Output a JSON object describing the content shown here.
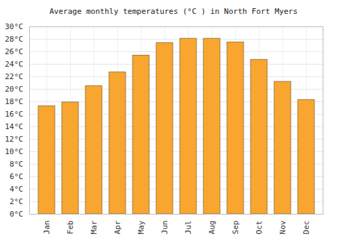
{
  "chart_data": {
    "type": "bar",
    "title": "Average monthly temperatures (°C ) in North Fort Myers",
    "categories": [
      "Jan",
      "Feb",
      "Mar",
      "Apr",
      "May",
      "Jun",
      "Jul",
      "Aug",
      "Sep",
      "Oct",
      "Nov",
      "Dec"
    ],
    "values": [
      17.3,
      17.9,
      20.5,
      22.7,
      25.4,
      27.4,
      28.1,
      28.1,
      27.5,
      24.7,
      21.2,
      18.3
    ],
    "color": "#f8a630",
    "ylim": [
      0,
      30
    ],
    "yticks": [
      {
        "value": 0,
        "label": "0°C"
      },
      {
        "value": 2,
        "label": "2°C"
      },
      {
        "value": 4,
        "label": "4°C"
      },
      {
        "value": 6,
        "label": "6°C"
      },
      {
        "value": 8,
        "label": "8°C"
      },
      {
        "value": 10,
        "label": "10°C"
      },
      {
        "value": 12,
        "label": "12°C"
      },
      {
        "value": 14,
        "label": "14°C"
      },
      {
        "value": 16,
        "label": "16°C"
      },
      {
        "value": 18,
        "label": "18°C"
      },
      {
        "value": 20,
        "label": "20°C"
      },
      {
        "value": 22,
        "label": "22°C"
      },
      {
        "value": 24,
        "label": "24°C"
      },
      {
        "value": 26,
        "label": "26°C"
      },
      {
        "value": 28,
        "label": "28°C"
      },
      {
        "value": 30,
        "label": "30°C"
      }
    ],
    "grid": true
  }
}
